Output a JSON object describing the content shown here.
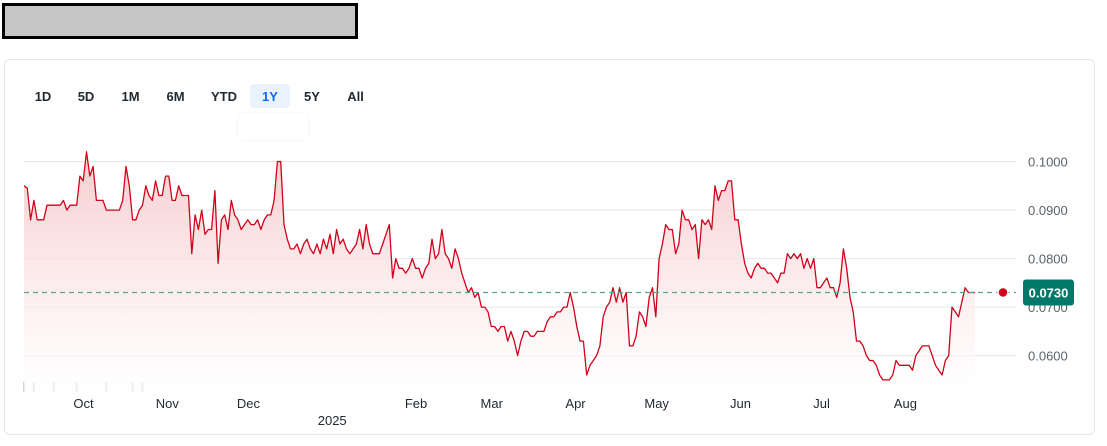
{
  "header": {
    "title_redacted": true
  },
  "range_buttons": {
    "items": [
      "1D",
      "5D",
      "1M",
      "6M",
      "YTD",
      "1Y",
      "5Y",
      "All"
    ],
    "selected": "1Y"
  },
  "colors": {
    "line": "#d0021b",
    "area_top": "#f7c9cc",
    "area_bottom": "#ffffff",
    "badge": "#00796b",
    "dash": "#5aa58e",
    "selected_range": "#0f69ff",
    "volume": "#d3d5d8"
  },
  "chart_data": {
    "type": "area",
    "x_start": "2024-09-09",
    "x_end": "2025-09-05",
    "x_ticks": [
      "Oct",
      "Nov",
      "Dec",
      "Feb",
      "Mar",
      "Apr",
      "May",
      "Jun",
      "Jul",
      "Aug"
    ],
    "year_label": "2025",
    "y_ticks": [
      "0.1000",
      "0.0900",
      "0.0800",
      "0.0700",
      "0.0600"
    ],
    "ylim": [
      0.0525,
      0.1065
    ],
    "grid": true,
    "last_price": "0.0730",
    "reference_line": 0.073,
    "series": [
      {
        "values": [
          0.095,
          0.0945,
          0.088,
          0.092,
          0.088,
          0.088,
          0.088,
          0.091,
          0.091,
          0.091,
          0.091,
          0.091,
          0.092,
          0.09,
          0.091,
          0.091,
          0.091,
          0.097,
          0.096,
          0.102,
          0.097,
          0.099,
          0.092,
          0.092,
          0.092,
          0.09,
          0.09,
          0.09,
          0.09,
          0.09,
          0.092,
          0.099,
          0.095,
          0.088,
          0.088,
          0.09,
          0.091,
          0.095,
          0.093,
          0.092,
          0.096,
          0.093,
          0.093,
          0.097,
          0.097,
          0.092,
          0.092,
          0.095,
          0.093,
          0.093,
          0.093,
          0.081,
          0.089,
          0.086,
          0.09,
          0.085,
          0.086,
          0.086,
          0.094,
          0.079,
          0.088,
          0.089,
          0.086,
          0.092,
          0.089,
          0.088,
          0.086,
          0.087,
          0.088,
          0.087,
          0.087,
          0.088,
          0.086,
          0.088,
          0.089,
          0.089,
          0.092,
          0.1,
          0.1,
          0.087,
          0.084,
          0.082,
          0.082,
          0.083,
          0.081,
          0.083,
          0.084,
          0.082,
          0.081,
          0.083,
          0.081,
          0.084,
          0.082,
          0.085,
          0.081,
          0.086,
          0.083,
          0.084,
          0.082,
          0.081,
          0.082,
          0.083,
          0.086,
          0.082,
          0.087,
          0.083,
          0.081,
          0.081,
          0.081,
          0.083,
          0.085,
          0.087,
          0.076,
          0.08,
          0.078,
          0.078,
          0.077,
          0.078,
          0.08,
          0.078,
          0.078,
          0.076,
          0.078,
          0.079,
          0.084,
          0.08,
          0.081,
          0.086,
          0.081,
          0.08,
          0.078,
          0.082,
          0.08,
          0.077,
          0.075,
          0.073,
          0.074,
          0.072,
          0.073,
          0.07,
          0.07,
          0.069,
          0.066,
          0.066,
          0.065,
          0.066,
          0.066,
          0.063,
          0.065,
          0.063,
          0.06,
          0.063,
          0.065,
          0.065,
          0.064,
          0.064,
          0.065,
          0.065,
          0.065,
          0.067,
          0.068,
          0.068,
          0.069,
          0.069,
          0.07,
          0.07,
          0.073,
          0.07,
          0.066,
          0.063,
          0.063,
          0.056,
          0.058,
          0.059,
          0.06,
          0.062,
          0.068,
          0.07,
          0.071,
          0.074,
          0.071,
          0.074,
          0.071,
          0.073,
          0.062,
          0.062,
          0.064,
          0.069,
          0.068,
          0.066,
          0.072,
          0.074,
          0.068,
          0.08,
          0.083,
          0.087,
          0.086,
          0.086,
          0.081,
          0.083,
          0.09,
          0.088,
          0.088,
          0.086,
          0.087,
          0.08,
          0.088,
          0.087,
          0.088,
          0.086,
          0.095,
          0.092,
          0.094,
          0.094,
          0.096,
          0.096,
          0.088,
          0.088,
          0.083,
          0.079,
          0.077,
          0.076,
          0.078,
          0.079,
          0.078,
          0.078,
          0.077,
          0.077,
          0.076,
          0.075,
          0.077,
          0.077,
          0.081,
          0.08,
          0.081,
          0.08,
          0.081,
          0.078,
          0.08,
          0.078,
          0.08,
          0.074,
          0.074,
          0.075,
          0.076,
          0.074,
          0.074,
          0.072,
          0.075,
          0.082,
          0.078,
          0.072,
          0.069,
          0.063,
          0.063,
          0.062,
          0.06,
          0.059,
          0.059,
          0.058,
          0.056,
          0.055,
          0.055,
          0.055,
          0.056,
          0.059,
          0.058,
          0.058,
          0.058,
          0.058,
          0.057,
          0.06,
          0.061,
          0.062,
          0.062,
          0.062,
          0.06,
          0.058,
          0.057,
          0.056,
          0.059,
          0.06,
          0.07,
          0.069,
          0.068,
          0.071,
          0.074,
          0.073,
          0.073,
          0.073
        ]
      }
    ],
    "volume": [
      1,
      0,
      0,
      1,
      0,
      0,
      0,
      0,
      0,
      1,
      0,
      0,
      0,
      0,
      0,
      0,
      1,
      0,
      0,
      0,
      0,
      0,
      0,
      0,
      0,
      1,
      0,
      0,
      0,
      0,
      0,
      0,
      0,
      1,
      0,
      0,
      1,
      0,
      0,
      0,
      0,
      0,
      0,
      0,
      0,
      0,
      0,
      0,
      0,
      0,
      0,
      0,
      0,
      0,
      0,
      0,
      0,
      0,
      0,
      0,
      0,
      0,
      0,
      0,
      0,
      0,
      0,
      0,
      0,
      0,
      0,
      0,
      0,
      0,
      0,
      0,
      0,
      0,
      0,
      0,
      0,
      0,
      0,
      0,
      0,
      0,
      0,
      0,
      0,
      0,
      0,
      0,
      0,
      0,
      0,
      0,
      0,
      0,
      0,
      0,
      0,
      0,
      0,
      0,
      0,
      0,
      0,
      0,
      0,
      0,
      0,
      0,
      0,
      0,
      0,
      0,
      0,
      0,
      0,
      0,
      0,
      0,
      0,
      0,
      0,
      0,
      0,
      0,
      0,
      0,
      0,
      0,
      0,
      0,
      0,
      0,
      0,
      0,
      0,
      0,
      0,
      0,
      0,
      0,
      0,
      0,
      0,
      0,
      0,
      0,
      0,
      0,
      0,
      0,
      0,
      0,
      0,
      0,
      0,
      0,
      0,
      0,
      0,
      0,
      0,
      0,
      0,
      0,
      0,
      0,
      0,
      0,
      0,
      0,
      0,
      0,
      0,
      0,
      0,
      0,
      0,
      0,
      0,
      0,
      0,
      0,
      0,
      0,
      0,
      0,
      0,
      0,
      0,
      0,
      0,
      0,
      0,
      0,
      0,
      0,
      0,
      0,
      0,
      0,
      0,
      0,
      0,
      0,
      0,
      0,
      0,
      0,
      0,
      0,
      0,
      0,
      0,
      0,
      0,
      0,
      0,
      0,
      0,
      0,
      0,
      0,
      0,
      0,
      0,
      0,
      0,
      0,
      0,
      0,
      0,
      0,
      0,
      0,
      0,
      0,
      0,
      0,
      0,
      0,
      0,
      0,
      0,
      0,
      0,
      0,
      0,
      0,
      0,
      0,
      0,
      0,
      0,
      0,
      0,
      0,
      0,
      0,
      0,
      0,
      0,
      0,
      0,
      0,
      0,
      0,
      0,
      0,
      0,
      0,
      0,
      0,
      0,
      0,
      0,
      0,
      0,
      0,
      0,
      0,
      0,
      0
    ]
  }
}
